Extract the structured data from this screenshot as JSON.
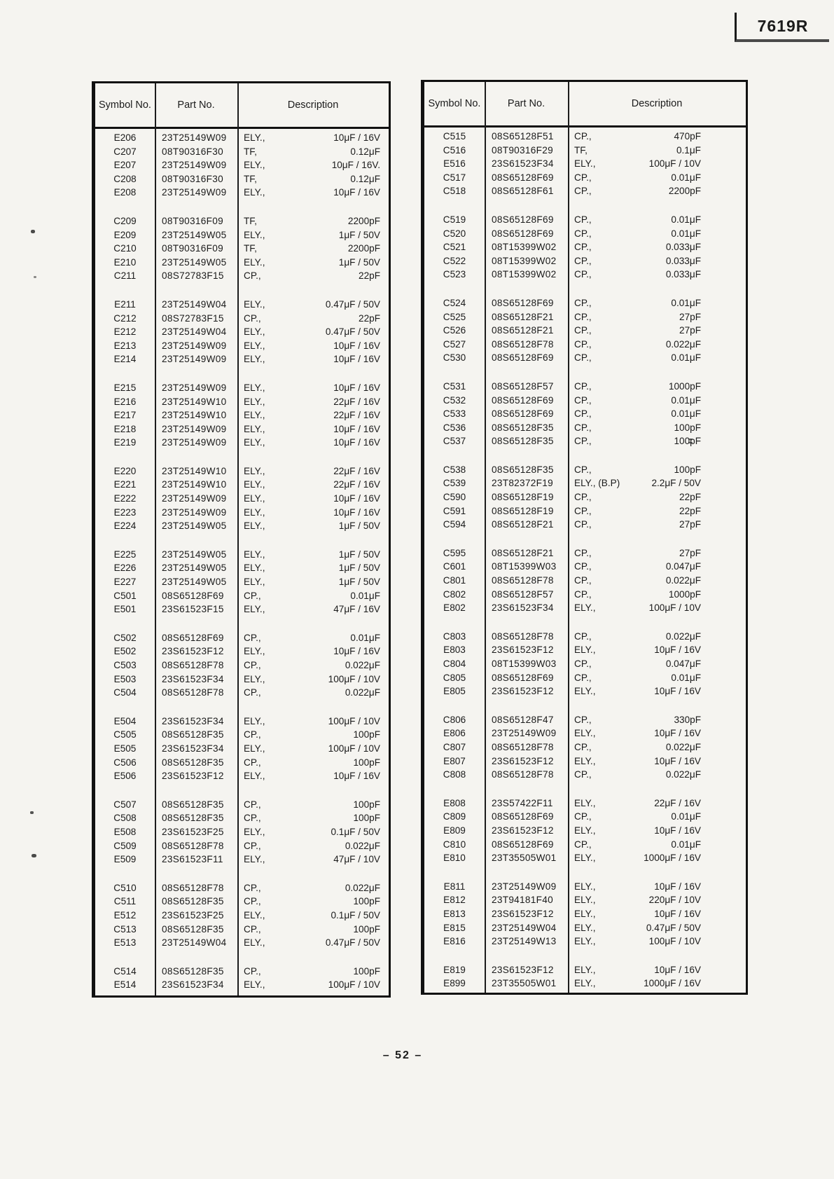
{
  "page": {
    "doc_code": "7619R",
    "page_number": "– 52 –"
  },
  "tables": [
    {
      "headers": {
        "symbol": "Symbol\nNo.",
        "part": "Part No.",
        "description": "Description"
      },
      "groups": [
        [
          [
            "E206",
            "23T25149W09",
            "ELY.,",
            "10μF / 16V"
          ],
          [
            "C207",
            "08T90316F30",
            "TF,",
            "0.12μF"
          ],
          [
            "E207",
            "23T25149W09",
            "ELY.,",
            "10μF / 16V."
          ],
          [
            "C208",
            "08T90316F30",
            "TF,",
            "0.12μF"
          ],
          [
            "E208",
            "23T25149W09",
            "ELY.,",
            "10μF / 16V"
          ]
        ],
        [
          [
            "C209",
            "08T90316F09",
            "TF,",
            "2200pF"
          ],
          [
            "E209",
            "23T25149W05",
            "ELY.,",
            "1μF / 50V"
          ],
          [
            "C210",
            "08T90316F09",
            "TF,",
            "2200pF"
          ],
          [
            "E210",
            "23T25149W05",
            "ELY.,",
            "1μF / 50V"
          ],
          [
            "C211",
            "08S72783F15",
            "CP.,",
            "22pF"
          ]
        ],
        [
          [
            "E211",
            "23T25149W04",
            "ELY.,",
            "0.47μF / 50V"
          ],
          [
            "C212",
            "08S72783F15",
            "CP.,",
            "22pF"
          ],
          [
            "E212",
            "23T25149W04",
            "ELY.,",
            "0.47μF / 50V"
          ],
          [
            "E213",
            "23T25149W09",
            "ELY.,",
            "10μF / 16V"
          ],
          [
            "E214",
            "23T25149W09",
            "ELY.,",
            "10μF / 16V"
          ]
        ],
        [
          [
            "E215",
            "23T25149W09",
            "ELY.,",
            "10μF / 16V"
          ],
          [
            "E216",
            "23T25149W10",
            "ELY.,",
            "22μF / 16V"
          ],
          [
            "E217",
            "23T25149W10",
            "ELY.,",
            "22μF / 16V"
          ],
          [
            "E218",
            "23T25149W09",
            "ELY.,",
            "10μF / 16V"
          ],
          [
            "E219",
            "23T25149W09",
            "ELY.,",
            "10μF / 16V"
          ]
        ],
        [
          [
            "E220",
            "23T25149W10",
            "ELY.,",
            "22μF / 16V"
          ],
          [
            "E221",
            "23T25149W10",
            "ELY.,",
            "22μF / 16V"
          ],
          [
            "E222",
            "23T25149W09",
            "ELY.,",
            "10μF / 16V"
          ],
          [
            "E223",
            "23T25149W09",
            "ELY.,",
            "10μF / 16V"
          ],
          [
            "E224",
            "23T25149W05",
            "ELY.,",
            "1μF / 50V"
          ]
        ],
        [
          [
            "E225",
            "23T25149W05",
            "ELY.,",
            "1μF / 50V"
          ],
          [
            "E226",
            "23T25149W05",
            "ELY.,",
            "1μF / 50V"
          ],
          [
            "E227",
            "23T25149W05",
            "ELY.,",
            "1μF / 50V"
          ],
          [
            "C501",
            "08S65128F69",
            "CP.,",
            "0.01μF"
          ],
          [
            "E501",
            "23S61523F15",
            "ELY.,",
            "47μF / 16V"
          ]
        ],
        [
          [
            "C502",
            "08S65128F69",
            "CP.,",
            "0.01μF"
          ],
          [
            "E502",
            "23S61523F12",
            "ELY.,",
            "10μF / 16V"
          ],
          [
            "C503",
            "08S65128F78",
            "CP.,",
            "0.022μF"
          ],
          [
            "E503",
            "23S61523F34",
            "ELY.,",
            "100μF / 10V"
          ],
          [
            "C504",
            "08S65128F78",
            "CP.,",
            "0.022μF"
          ]
        ],
        [
          [
            "E504",
            "23S61523F34",
            "ELY.,",
            "100μF / 10V"
          ],
          [
            "C505",
            "08S65128F35",
            "CP.,",
            "100pF"
          ],
          [
            "E505",
            "23S61523F34",
            "ELY.,",
            "100μF / 10V"
          ],
          [
            "C506",
            "08S65128F35",
            "CP.,",
            "100pF"
          ],
          [
            "E506",
            "23S61523F12",
            "ELY.,",
            "10μF / 16V"
          ]
        ],
        [
          [
            "C507",
            "08S65128F35",
            "CP.,",
            "100pF"
          ],
          [
            "C508",
            "08S65128F35",
            "CP.,",
            "100pF"
          ],
          [
            "E508",
            "23S61523F25",
            "ELY.,",
            "0.1μF / 50V"
          ],
          [
            "C509",
            "08S65128F78",
            "CP.,",
            "0.022μF"
          ],
          [
            "E509",
            "23S61523F11",
            "ELY.,",
            "47μF / 10V"
          ]
        ],
        [
          [
            "C510",
            "08S65128F78",
            "CP.,",
            "0.022μF"
          ],
          [
            "C511",
            "08S65128F35",
            "CP.,",
            "100pF"
          ],
          [
            "E512",
            "23S61523F25",
            "ELY.,",
            "0.1μF / 50V"
          ],
          [
            "C513",
            "08S65128F35",
            "CP.,",
            "100pF"
          ],
          [
            "E513",
            "23T25149W04",
            "ELY.,",
            "0.47μF / 50V"
          ]
        ],
        [
          [
            "C514",
            "08S65128F35",
            "CP.,",
            "100pF"
          ],
          [
            "E514",
            "23S61523F34",
            "ELY.,",
            "100μF / 10V"
          ]
        ]
      ]
    },
    {
      "headers": {
        "symbol": "Symbol\nNo.",
        "part": "Part No.",
        "description": "Description"
      },
      "groups": [
        [
          [
            "C515",
            "08S65128F51",
            "CP.,",
            "470pF"
          ],
          [
            "C516",
            "08T90316F29",
            "TF,",
            "0.1μF"
          ],
          [
            "E516",
            "23S61523F34",
            "ELY.,",
            "100μF / 10V"
          ],
          [
            "C517",
            "08S65128F69",
            "CP.,",
            "0.01μF"
          ],
          [
            "C518",
            "08S65128F61",
            "CP.,",
            "2200pF"
          ]
        ],
        [
          [
            "C519",
            "08S65128F69",
            "CP.,",
            "0.01μF"
          ],
          [
            "C520",
            "08S65128F69",
            "CP.,",
            "0.01μF"
          ],
          [
            "C521",
            "08T15399W02",
            "CP.,",
            "0.033μF"
          ],
          [
            "C522",
            "08T15399W02",
            "CP.,",
            "0.033μF"
          ],
          [
            "C523",
            "08T15399W02",
            "CP.,",
            "0.033μF"
          ]
        ],
        [
          [
            "C524",
            "08S65128F69",
            "CP.,",
            "0.01μF"
          ],
          [
            "C525",
            "08S65128F21",
            "CP.,",
            "27pF"
          ],
          [
            "C526",
            "08S65128F21",
            "CP.,",
            "27pF"
          ],
          [
            "C527",
            "08S65128F78",
            "CP.,",
            "0.022μF"
          ],
          [
            "C530",
            "08S65128F69",
            "CP.,",
            "0.01μF"
          ]
        ],
        [
          [
            "C531",
            "08S65128F57",
            "CP.,",
            "1000pF"
          ],
          [
            "C532",
            "08S65128F69",
            "CP.,",
            "0.01μF"
          ],
          [
            "C533",
            "08S65128F69",
            "CP.,",
            "0.01μF"
          ],
          [
            "C536",
            "08S65128F35",
            "CP.,",
            "100pF"
          ],
          [
            "C537",
            "08S65128F35",
            "CP.,",
            "100pF"
          ]
        ],
        [
          [
            "C538",
            "08S65128F35",
            "CP.,",
            "100pF"
          ],
          [
            "C539",
            "23T82372F19",
            "ELY., (B.P)",
            "2.2μF / 50V"
          ],
          [
            "C590",
            "08S65128F19",
            "CP.,",
            "22pF"
          ],
          [
            "C591",
            "08S65128F19",
            "CP.,",
            "22pF"
          ],
          [
            "C594",
            "08S65128F21",
            "CP.,",
            "27pF"
          ]
        ],
        [
          [
            "C595",
            "08S65128F21",
            "CP.,",
            "27pF"
          ],
          [
            "C601",
            "08T15399W03",
            "CP.,",
            "0.047μF"
          ],
          [
            "C801",
            "08S65128F78",
            "CP.,",
            "0.022μF"
          ],
          [
            "C802",
            "08S65128F57",
            "CP.,",
            "1000pF"
          ],
          [
            "E802",
            "23S61523F34",
            "ELY.,",
            "100μF / 10V"
          ]
        ],
        [
          [
            "C803",
            "08S65128F78",
            "CP.,",
            "0.022μF"
          ],
          [
            "E803",
            "23S61523F12",
            "ELY.,",
            "10μF / 16V"
          ],
          [
            "C804",
            "08T15399W03",
            "CP.,",
            "0.047μF"
          ],
          [
            "C805",
            "08S65128F69",
            "CP.,",
            "0.01μF"
          ],
          [
            "E805",
            "23S61523F12",
            "ELY.,",
            "10μF / 16V"
          ]
        ],
        [
          [
            "C806",
            "08S65128F47",
            "CP.,",
            "330pF"
          ],
          [
            "E806",
            "23T25149W09",
            "ELY.,",
            "10μF / 16V"
          ],
          [
            "C807",
            "08S65128F78",
            "CP.,",
            "0.022μF"
          ],
          [
            "E807",
            "23S61523F12",
            "ELY.,",
            "10μF / 16V"
          ],
          [
            "C808",
            "08S65128F78",
            "CP.,",
            "0.022μF"
          ]
        ],
        [
          [
            "E808",
            "23S57422F11",
            "ELY.,",
            "22μF / 16V"
          ],
          [
            "C809",
            "08S65128F69",
            "CP.,",
            "0.01μF"
          ],
          [
            "E809",
            "23S61523F12",
            "ELY.,",
            "10μF / 16V"
          ],
          [
            "C810",
            "08S65128F69",
            "CP.,",
            "0.01μF"
          ],
          [
            "E810",
            "23T35505W01",
            "ELY.,",
            "1000μF / 16V"
          ]
        ],
        [
          [
            "E811",
            "23T25149W09",
            "ELY.,",
            "10μF / 16V"
          ],
          [
            "E812",
            "23T94181F40",
            "ELY.,",
            "220μF / 10V"
          ],
          [
            "E813",
            "23S61523F12",
            "ELY.,",
            "10μF / 16V"
          ],
          [
            "E815",
            "23T25149W04",
            "ELY.,",
            "0.47μF / 50V"
          ],
          [
            "E816",
            "23T25149W13",
            "ELY.,",
            "100μF / 10V"
          ]
        ],
        [
          [
            "E819",
            "23S61523F12",
            "ELY.,",
            "10μF / 16V"
          ],
          [
            "E899",
            "23T35505W01",
            "ELY.,",
            "1000μF / 16V"
          ]
        ]
      ]
    }
  ]
}
